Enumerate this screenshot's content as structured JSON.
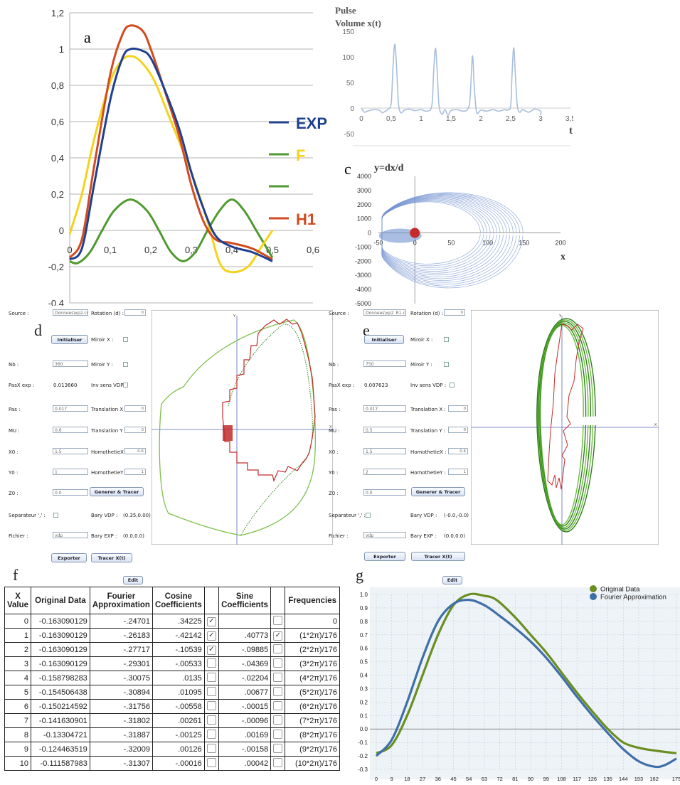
{
  "chart_data": [
    {
      "id": "a",
      "type": "line",
      "panel_label": "a",
      "xlim": [
        0,
        0.6
      ],
      "ylim": [
        -0.4,
        1.2
      ],
      "xticks": [
        "0",
        "0,1",
        "0,2",
        "0,3",
        "0,4",
        "0,5",
        "0,6"
      ],
      "yticks": [
        "-0,4",
        "-0,2",
        "0",
        "0,2",
        "0,4",
        "0,6",
        "0,8",
        "1",
        "1,2"
      ],
      "legend_position": "right",
      "series": [
        {
          "name": "EXP",
          "color": "#1f3f8f",
          "points": [
            [
              0,
              -0.16
            ],
            [
              0.03,
              -0.1
            ],
            [
              0.06,
              0.25
            ],
            [
              0.1,
              0.72
            ],
            [
              0.13,
              0.95
            ],
            [
              0.15,
              1.0
            ],
            [
              0.18,
              0.99
            ],
            [
              0.2,
              0.95
            ],
            [
              0.23,
              0.8
            ],
            [
              0.27,
              0.56
            ],
            [
              0.3,
              0.32
            ],
            [
              0.33,
              0.12
            ],
            [
              0.36,
              -0.03
            ],
            [
              0.4,
              -0.09
            ],
            [
              0.45,
              -0.12
            ],
            [
              0.5,
              -0.17
            ]
          ]
        },
        {
          "name": "F",
          "color": "#f5d21c",
          "points": [
            [
              0,
              -0.02
            ],
            [
              0.03,
              0.2
            ],
            [
              0.06,
              0.5
            ],
            [
              0.1,
              0.82
            ],
            [
              0.13,
              0.94
            ],
            [
              0.155,
              0.96
            ],
            [
              0.18,
              0.92
            ],
            [
              0.21,
              0.82
            ],
            [
              0.25,
              0.6
            ],
            [
              0.3,
              0.32
            ],
            [
              0.34,
              0.05
            ],
            [
              0.37,
              -0.18
            ],
            [
              0.4,
              -0.23
            ],
            [
              0.44,
              -0.2
            ],
            [
              0.47,
              -0.1
            ],
            [
              0.5,
              0.0
            ]
          ]
        },
        {
          "name": "H1",
          "color": "#d24a1e",
          "points": [
            [
              0,
              -0.15
            ],
            [
              0.03,
              -0.05
            ],
            [
              0.06,
              0.35
            ],
            [
              0.1,
              0.86
            ],
            [
              0.13,
              1.08
            ],
            [
              0.15,
              1.13
            ],
            [
              0.18,
              1.1
            ],
            [
              0.2,
              1.0
            ],
            [
              0.23,
              0.8
            ],
            [
              0.27,
              0.52
            ],
            [
              0.3,
              0.25
            ],
            [
              0.33,
              0.05
            ],
            [
              0.36,
              -0.05
            ],
            [
              0.4,
              -0.07
            ],
            [
              0.45,
              -0.1
            ],
            [
              0.5,
              -0.16
            ]
          ]
        },
        {
          "name": "",
          "color": "#4f9a2e",
          "points": [
            [
              0,
              -0.17
            ],
            [
              0.02,
              -0.18
            ],
            [
              0.05,
              -0.12
            ],
            [
              0.08,
              0.0
            ],
            [
              0.11,
              0.11
            ],
            [
              0.15,
              0.17
            ],
            [
              0.19,
              0.11
            ],
            [
              0.22,
              0.0
            ],
            [
              0.25,
              -0.12
            ],
            [
              0.28,
              -0.17
            ],
            [
              0.31,
              -0.12
            ],
            [
              0.34,
              0.0
            ],
            [
              0.37,
              0.11
            ],
            [
              0.4,
              0.17
            ],
            [
              0.43,
              0.11
            ],
            [
              0.46,
              0.0
            ],
            [
              0.5,
              -0.15
            ]
          ]
        }
      ]
    },
    {
      "id": "b",
      "type": "line",
      "panel_label": "b",
      "title_line1": "Pulse",
      "title_line2": "Volume x(t)",
      "xlabel": "t",
      "xlim": [
        0,
        3.5
      ],
      "ylim": [
        -50,
        150
      ],
      "xticks": [
        "0",
        "0,5",
        "1",
        "1,5",
        "2",
        "2,5",
        "3",
        "3,5"
      ],
      "yticks": [
        "-50",
        "0",
        "50",
        "100",
        "150"
      ],
      "color": "#a8bedd",
      "points": [
        [
          0,
          0
        ],
        [
          0.05,
          -8
        ],
        [
          0.1,
          -6
        ],
        [
          0.2,
          -3
        ],
        [
          0.3,
          -4
        ],
        [
          0.35,
          -9
        ],
        [
          0.4,
          -6
        ],
        [
          0.45,
          -2
        ],
        [
          0.5,
          10
        ],
        [
          0.53,
          80
        ],
        [
          0.56,
          125
        ],
        [
          0.59,
          80
        ],
        [
          0.62,
          10
        ],
        [
          0.66,
          -9
        ],
        [
          0.72,
          -4
        ],
        [
          0.8,
          -2
        ],
        [
          0.9,
          -5
        ],
        [
          1.0,
          -3
        ],
        [
          1.1,
          -6
        ],
        [
          1.18,
          5
        ],
        [
          1.21,
          70
        ],
        [
          1.24,
          117
        ],
        [
          1.27,
          70
        ],
        [
          1.3,
          5
        ],
        [
          1.35,
          -12
        ],
        [
          1.4,
          -3
        ],
        [
          1.45,
          -14
        ],
        [
          1.5,
          -5
        ],
        [
          1.6,
          -3
        ],
        [
          1.7,
          -6
        ],
        [
          1.78,
          -2
        ],
        [
          1.82,
          20
        ],
        [
          1.86,
          102
        ],
        [
          1.89,
          40
        ],
        [
          1.93,
          -8
        ],
        [
          2.0,
          -4
        ],
        [
          2.1,
          -6
        ],
        [
          2.2,
          -3
        ],
        [
          2.3,
          -6
        ],
        [
          2.4,
          -3
        ],
        [
          2.45,
          -4
        ],
        [
          2.5,
          5
        ],
        [
          2.52,
          60
        ],
        [
          2.55,
          118
        ],
        [
          2.58,
          60
        ],
        [
          2.61,
          5
        ],
        [
          2.65,
          -8
        ],
        [
          2.7,
          -3
        ],
        [
          2.8,
          -8
        ],
        [
          2.9,
          -2
        ],
        [
          3.0,
          -6
        ],
        [
          3.0,
          -14
        ]
      ]
    },
    {
      "id": "c",
      "type": "scatter",
      "panel_label": "c",
      "ylabel": "y=dx/d",
      "xlabel": "x",
      "xlim": [
        -50,
        200
      ],
      "ylim": [
        -5000,
        4000
      ],
      "xticks": [
        "-50",
        "0",
        "50",
        "100",
        "150",
        "200"
      ],
      "yticks": [
        "-5000",
        "-4000",
        "-3000",
        "-2000",
        "-1000",
        "0",
        "1000",
        "2000",
        "3000",
        "4000"
      ],
      "color": "#6f8fcf",
      "marker_color": "#c62a2a"
    },
    {
      "id": "g",
      "type": "line",
      "panel_label": "g",
      "xlim": [
        0,
        175
      ],
      "ylim": [
        -0.3,
        1.0
      ],
      "xticks": [
        "0",
        "9",
        "18",
        "27",
        "36",
        "45",
        "54",
        "63",
        "72",
        "81",
        "90",
        "99",
        "108",
        "117",
        "126",
        "135",
        "144",
        "153",
        "162",
        "175"
      ],
      "yticks": [
        "-0.3",
        "-0.2",
        "-0.1",
        "0.0",
        "0.1",
        "0.2",
        "0.3",
        "0.4",
        "0.5",
        "0.6",
        "0.7",
        "0.8",
        "0.9",
        "1.0"
      ],
      "legend_position": "top-right",
      "series": [
        {
          "name": "Original Data",
          "color": "#6b8e23",
          "points": [
            [
              0,
              -0.18
            ],
            [
              9,
              -0.12
            ],
            [
              18,
              0.1
            ],
            [
              27,
              0.4
            ],
            [
              36,
              0.7
            ],
            [
              45,
              0.92
            ],
            [
              54,
              1.0
            ],
            [
              63,
              0.99
            ],
            [
              70,
              0.96
            ],
            [
              81,
              0.83
            ],
            [
              90,
              0.7
            ],
            [
              99,
              0.57
            ],
            [
              108,
              0.42
            ],
            [
              117,
              0.27
            ],
            [
              126,
              0.13
            ],
            [
              135,
              0.0
            ],
            [
              144,
              -0.1
            ],
            [
              153,
              -0.14
            ],
            [
              162,
              -0.16
            ],
            [
              175,
              -0.18
            ]
          ]
        },
        {
          "name": "Fourier Approximation",
          "color": "#3f6fa8",
          "points": [
            [
              0,
              -0.2
            ],
            [
              9,
              -0.08
            ],
            [
              18,
              0.2
            ],
            [
              27,
              0.53
            ],
            [
              36,
              0.8
            ],
            [
              45,
              0.93
            ],
            [
              54,
              0.96
            ],
            [
              63,
              0.92
            ],
            [
              72,
              0.84
            ],
            [
              81,
              0.75
            ],
            [
              90,
              0.65
            ],
            [
              99,
              0.53
            ],
            [
              108,
              0.39
            ],
            [
              117,
              0.24
            ],
            [
              126,
              0.1
            ],
            [
              135,
              -0.03
            ],
            [
              144,
              -0.15
            ],
            [
              153,
              -0.24
            ],
            [
              162,
              -0.28
            ],
            [
              168,
              -0.27
            ],
            [
              175,
              -0.22
            ]
          ]
        }
      ]
    }
  ],
  "panel_d": {
    "label": "d",
    "source_label": "Source :",
    "source_value": "Donnees\\xp2.csv",
    "rotation_label": "Rotation (d) :",
    "rotation_value": "0",
    "init_button": "Initialiser",
    "mirror_x_label": "Miroir X :",
    "nb_label": "Nb :",
    "nb_value": "360",
    "mirror_y_label": "Miroir Y :",
    "pasx_label": "PasX exp :",
    "pasx_value": "0.013660",
    "inv_label": "Inv sens VDP :",
    "pas_label": "Pas :",
    "pas_value": "0.017",
    "tx_label": "Translation X :",
    "tx_value": "0",
    "mu_label": "MU :",
    "mu_value": "0.6",
    "ty_label": "Translation Y :",
    "ty_value": "0",
    "x0_label": "X0 :",
    "x0_value": "1.5",
    "hx_label": "HomothetieX :",
    "hx_value": "0.6",
    "y0_label": "Y0 :",
    "y0_value": "1",
    "hy_label": "HomothetieY :",
    "hy_value": "1",
    "z0_label": "Z0 :",
    "z0_value": "0.0",
    "gen_button": "Generer & Tracer",
    "sep_label": "Separateur ',' :",
    "bary_vdp_label": "Bary VDP :",
    "bary_vdp_value": "(0.35,0.00)",
    "fichier_label": "Fichier :",
    "fichier_value": "vdp",
    "bary_exp_label": "Bary EXP :",
    "bary_exp_value": "(0.0,0.0)",
    "export_button": "Exporter",
    "trace_button": "Tracer X(t)",
    "axis_y": "Y",
    "axis_x": "X",
    "colors": {
      "green": "#4fa33a",
      "red": "#c22b2b",
      "axis": "#5566bb"
    }
  },
  "panel_e": {
    "label": "e",
    "source_label": "Source :",
    "source_value": "Donnees\\xp2_R1.csv",
    "rotation_label": "Rotation (d) :",
    "rotation_value": "0",
    "init_button": "Initialiser",
    "mirror_x_label": "Miroir X :",
    "nb_label": "Nb :",
    "nb_value": "750",
    "mirror_y_label": "Miroir Y :",
    "pasx_label": "PasX exp :",
    "pasx_value": "0.007623",
    "inv_label": "Inv sens VDP :",
    "pas_label": "Pas :",
    "pas_value": "0.017",
    "tx_label": "Translation X :",
    "tx_value": "0",
    "mu_label": "MU :",
    "mu_value": "0.5",
    "ty_label": "Translation Y :",
    "ty_value": "0",
    "x0_label": "X0 :",
    "x0_value": "1.5",
    "hx_label": "HomothetieX :",
    "hx_value": "0.6",
    "y0_label": "Y0 :",
    "y0_value": "2",
    "hy_label": "HomothetieY :",
    "hy_value": "1",
    "z0_label": "Z0 :",
    "z0_value": "0.0",
    "gen_button": "Generer & Tracer",
    "sep_label": "Separateur ',' :",
    "bary_vdp_label": "Bary VDP :",
    "bary_vdp_value": "(-0.0,-0.0)",
    "fichier_label": "Fichier :",
    "fichier_value": "vdp",
    "bary_exp_label": "Bary EXP :",
    "bary_exp_value": "(0.0,0.0)",
    "export_button": "Exporter",
    "trace_button": "Tracer X(t)",
    "axis_y": "Y",
    "axis_x": "X"
  },
  "panel_f": {
    "label": "f",
    "edit_button": "Edit",
    "headers": [
      "X Value",
      "Original Data",
      "Fourier Approximation",
      "Cosine Coefficients",
      "",
      "Sine Coefficients",
      "",
      "Frequencies"
    ],
    "rows": [
      {
        "x": "0",
        "orig": "-0.163090129",
        "fourier": "-.24701",
        "cos": ".34225",
        "cos_checked": true,
        "sin": "",
        "sin_checked": false,
        "freq": "0"
      },
      {
        "x": "1",
        "orig": "-0.163090129",
        "fourier": "-.26183",
        "cos": "-.42142",
        "cos_checked": true,
        "sin": ".40773",
        "sin_checked": true,
        "freq": "(1*2π)/176"
      },
      {
        "x": "2",
        "orig": "-0.163090129",
        "fourier": "-.27717",
        "cos": "-.10539",
        "cos_checked": true,
        "sin": "-.09885",
        "sin_checked": false,
        "freq": "(2*2π)/176"
      },
      {
        "x": "3",
        "orig": "-0.163090129",
        "fourier": "-.29301",
        "cos": "-.00533",
        "cos_checked": false,
        "sin": "-.04369",
        "sin_checked": false,
        "freq": "(3*2π)/176"
      },
      {
        "x": "4",
        "orig": "-0.158798283",
        "fourier": "-.30075",
        "cos": ".0135",
        "cos_checked": false,
        "sin": "-.02204",
        "sin_checked": false,
        "freq": "(4*2π)/176"
      },
      {
        "x": "5",
        "orig": "-0.154506438",
        "fourier": "-.30894",
        "cos": ".01095",
        "cos_checked": false,
        "sin": ".00677",
        "sin_checked": false,
        "freq": "(5*2π)/176"
      },
      {
        "x": "6",
        "orig": "-0.150214592",
        "fourier": "-.31756",
        "cos": "-.00558",
        "cos_checked": false,
        "sin": "-.00015",
        "sin_checked": false,
        "freq": "(6*2π)/176"
      },
      {
        "x": "7",
        "orig": "-0.141630901",
        "fourier": "-.31802",
        "cos": ".00261",
        "cos_checked": false,
        "sin": "-.00096",
        "sin_checked": false,
        "freq": "(7*2π)/176"
      },
      {
        "x": "8",
        "orig": "-0.13304721",
        "fourier": "-.31887",
        "cos": "-.00125",
        "cos_checked": false,
        "sin": ".00169",
        "sin_checked": false,
        "freq": "(8*2π)/176"
      },
      {
        "x": "9",
        "orig": "-0.124463519",
        "fourier": "-.32009",
        "cos": ".00126",
        "cos_checked": false,
        "sin": "-.00158",
        "sin_checked": false,
        "freq": "(9*2π)/176"
      },
      {
        "x": "10",
        "orig": "-0.111587983",
        "fourier": "-.31307",
        "cos": "-.00016",
        "cos_checked": false,
        "sin": ".00042",
        "sin_checked": false,
        "freq": "(10*2π)/176"
      }
    ]
  },
  "panel_g": {
    "label": "g",
    "edit_button": "Edit"
  }
}
